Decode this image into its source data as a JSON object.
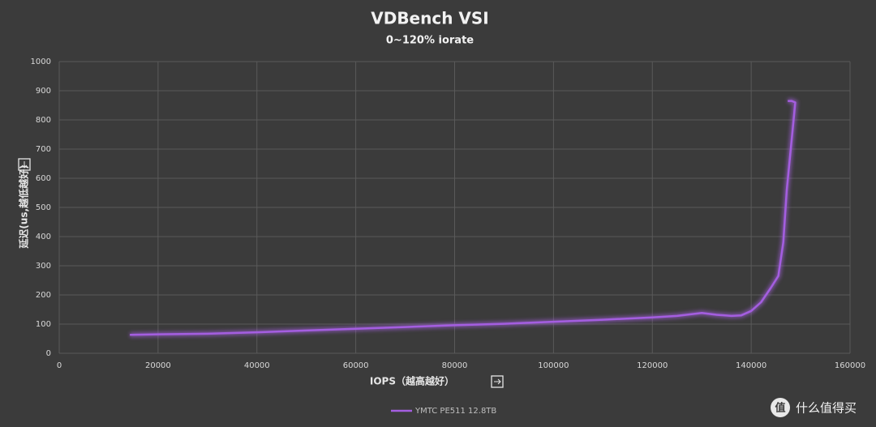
{
  "chart_data": {
    "type": "line",
    "title": "VDBench VSI",
    "subtitle": "0~120% iorate",
    "x_label": "IOPS（越高越好）",
    "y_label": "延迟(us,越低越好)",
    "xlim": [
      0,
      160000
    ],
    "xticks": [
      0,
      20000,
      40000,
      60000,
      80000,
      100000,
      120000,
      140000,
      160000
    ],
    "ylim": [
      0,
      1000
    ],
    "yticks": [
      0,
      100,
      200,
      300,
      400,
      500,
      600,
      700,
      800,
      900,
      1000
    ],
    "grid": true,
    "legend": "bottom",
    "series": [
      {
        "name": "YMTC PE511 12.8TB",
        "color": "#a45ee0",
        "x": [
          14300,
          20000,
          30000,
          40000,
          50000,
          60000,
          70000,
          80000,
          90000,
          100000,
          110000,
          120000,
          125000,
          130000,
          133000,
          136000,
          138000,
          140000,
          142000,
          144000,
          145500,
          146500,
          147200,
          148000,
          148700,
          148900,
          148200,
          147400
        ],
        "values": [
          63,
          65,
          67,
          72,
          78,
          84,
          90,
          96,
          101,
          108,
          115,
          123,
          128,
          138,
          132,
          128,
          130,
          145,
          175,
          225,
          265,
          380,
          560,
          700,
          820,
          860,
          865,
          865
        ]
      }
    ],
    "watermark_logo": "值",
    "watermark": "什么值得买"
  }
}
